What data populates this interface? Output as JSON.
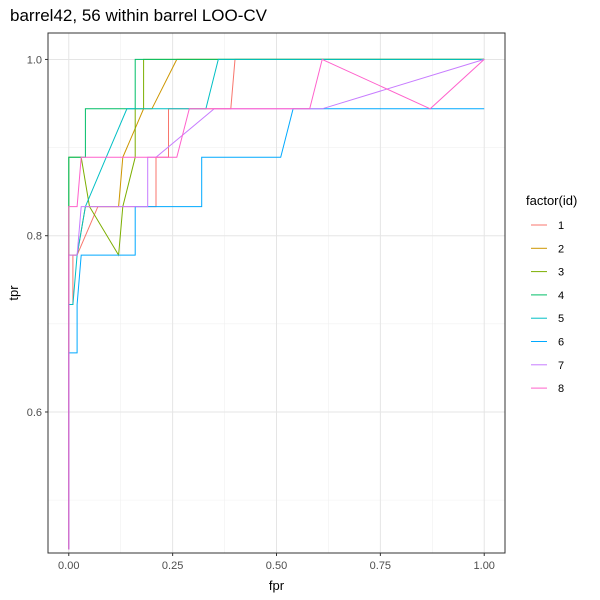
{
  "chart_data": {
    "type": "line",
    "title": "barrel42, 56 within barrel LOO-CV",
    "xlabel": "fpr",
    "ylabel": "tpr",
    "xlim": [
      -0.05,
      1.05
    ],
    "ylim": [
      0.44,
      1.03
    ],
    "x_ticks": [
      0.0,
      0.25,
      0.5,
      0.75,
      1.0
    ],
    "x_tick_labels": [
      "0.00",
      "0.25",
      "0.50",
      "0.75",
      "1.00"
    ],
    "y_ticks": [
      0.6,
      0.8,
      1.0
    ],
    "y_tick_labels": [
      "0.6",
      "0.8",
      "1.0"
    ],
    "grid": true,
    "legend": {
      "title": "factor(id)",
      "position": "right"
    },
    "series": [
      {
        "name": "1",
        "color": "#F8766D",
        "x": [
          0.0,
          0.0,
          0.01,
          0.01,
          0.02,
          0.07,
          0.14,
          0.21,
          0.21,
          0.24,
          0.24,
          0.39,
          0.4,
          1.0
        ],
        "y": [
          0.444,
          0.722,
          0.722,
          0.778,
          0.778,
          0.833,
          0.833,
          0.833,
          0.889,
          0.889,
          0.944,
          0.944,
          1.0,
          1.0
        ]
      },
      {
        "name": "2",
        "color": "#CD9600",
        "x": [
          0.0,
          0.0,
          0.02,
          0.04,
          0.12,
          0.13,
          0.13,
          0.18,
          0.2,
          0.26,
          1.0
        ],
        "y": [
          0.444,
          0.778,
          0.778,
          0.833,
          0.833,
          0.889,
          0.889,
          0.944,
          0.944,
          1.0,
          1.0
        ]
      },
      {
        "name": "3",
        "color": "#7CAE00",
        "x": [
          0.0,
          0.0,
          0.03,
          0.05,
          0.12,
          0.13,
          0.16,
          0.16,
          0.18,
          0.18,
          1.0
        ],
        "y": [
          0.444,
          0.889,
          0.889,
          0.833,
          0.778,
          0.833,
          0.889,
          0.944,
          0.944,
          1.0,
          1.0
        ]
      },
      {
        "name": "4",
        "color": "#00BE67",
        "x": [
          0.0,
          0.0,
          0.04,
          0.04,
          0.14,
          0.16,
          0.16,
          0.19,
          0.37,
          0.39,
          1.0
        ],
        "y": [
          0.444,
          0.889,
          0.889,
          0.944,
          0.944,
          0.944,
          1.0,
          1.0,
          1.0,
          1.0,
          1.0
        ]
      },
      {
        "name": "5",
        "color": "#00BFC4",
        "x": [
          0.0,
          0.0,
          0.01,
          0.02,
          0.04,
          0.09,
          0.14,
          0.33,
          0.36,
          0.38,
          0.61,
          1.0
        ],
        "y": [
          0.444,
          0.722,
          0.722,
          0.778,
          0.833,
          0.889,
          0.944,
          0.944,
          1.0,
          1.0,
          1.0,
          1.0
        ]
      },
      {
        "name": "6",
        "color": "#00A9FF",
        "x": [
          0.0,
          0.0,
          0.02,
          0.02,
          0.03,
          0.04,
          0.16,
          0.16,
          0.32,
          0.32,
          0.51,
          0.54,
          1.0
        ],
        "y": [
          0.444,
          0.667,
          0.667,
          0.722,
          0.778,
          0.778,
          0.778,
          0.833,
          0.833,
          0.889,
          0.889,
          0.944,
          0.944
        ]
      },
      {
        "name": "7",
        "color": "#C77CFF",
        "x": [
          0.0,
          0.0,
          0.02,
          0.03,
          0.14,
          0.19,
          0.19,
          0.21,
          0.35,
          0.61,
          1.0
        ],
        "y": [
          0.444,
          0.778,
          0.778,
          0.833,
          0.833,
          0.833,
          0.889,
          0.889,
          0.944,
          0.944,
          1.0
        ]
      },
      {
        "name": "8",
        "color": "#FF61CC",
        "x": [
          0.0,
          0.0,
          0.02,
          0.03,
          0.06,
          0.26,
          0.29,
          0.58,
          0.61,
          0.87,
          1.0
        ],
        "y": [
          0.444,
          0.833,
          0.833,
          0.889,
          0.889,
          0.889,
          0.944,
          0.944,
          1.0,
          0.944,
          1.0
        ]
      }
    ]
  }
}
